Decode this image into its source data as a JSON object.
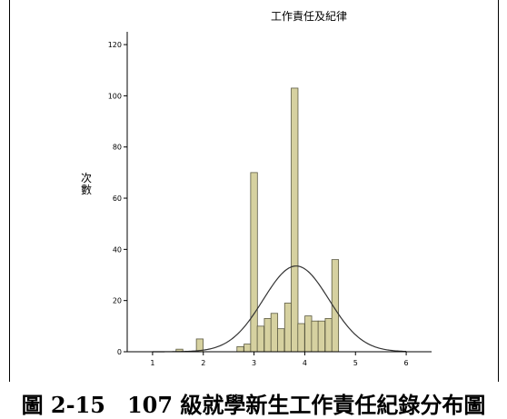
{
  "caption": "圖 2-15　107 級就學新生工作責任紀錄分布圖",
  "colors": {
    "bar_fill": "#d6d1a0",
    "bar_stroke": "#5b5a42",
    "curve": "#333333"
  },
  "chart_data": {
    "type": "bar",
    "title": "工作責任及紀律",
    "xlabel": "",
    "ylabel": "次數",
    "xlim": [
      0.5,
      6.5
    ],
    "ylim": [
      0,
      125
    ],
    "x_ticks": [
      "1",
      "2",
      "3",
      "4",
      "5",
      "6"
    ],
    "y_ticks": [
      "0",
      "20",
      "40",
      "60",
      "80",
      "100",
      "120"
    ],
    "bin_width": 0.1333,
    "bins": [
      {
        "x": 1.53,
        "value": 1
      },
      {
        "x": 1.93,
        "value": 5
      },
      {
        "x": 2.73,
        "value": 2
      },
      {
        "x": 2.87,
        "value": 3
      },
      {
        "x": 3.0,
        "value": 70
      },
      {
        "x": 3.13,
        "value": 10
      },
      {
        "x": 3.27,
        "value": 13
      },
      {
        "x": 3.4,
        "value": 15
      },
      {
        "x": 3.53,
        "value": 9
      },
      {
        "x": 3.67,
        "value": 19
      },
      {
        "x": 3.8,
        "value": 103
      },
      {
        "x": 3.93,
        "value": 11
      },
      {
        "x": 4.07,
        "value": 14
      },
      {
        "x": 4.2,
        "value": 12
      },
      {
        "x": 4.33,
        "value": 12
      },
      {
        "x": 4.47,
        "value": 13
      },
      {
        "x": 4.6,
        "value": 36
      }
    ],
    "normal_curve": {
      "mean": 3.83,
      "peak": 33.5,
      "sd": 0.65
    }
  }
}
